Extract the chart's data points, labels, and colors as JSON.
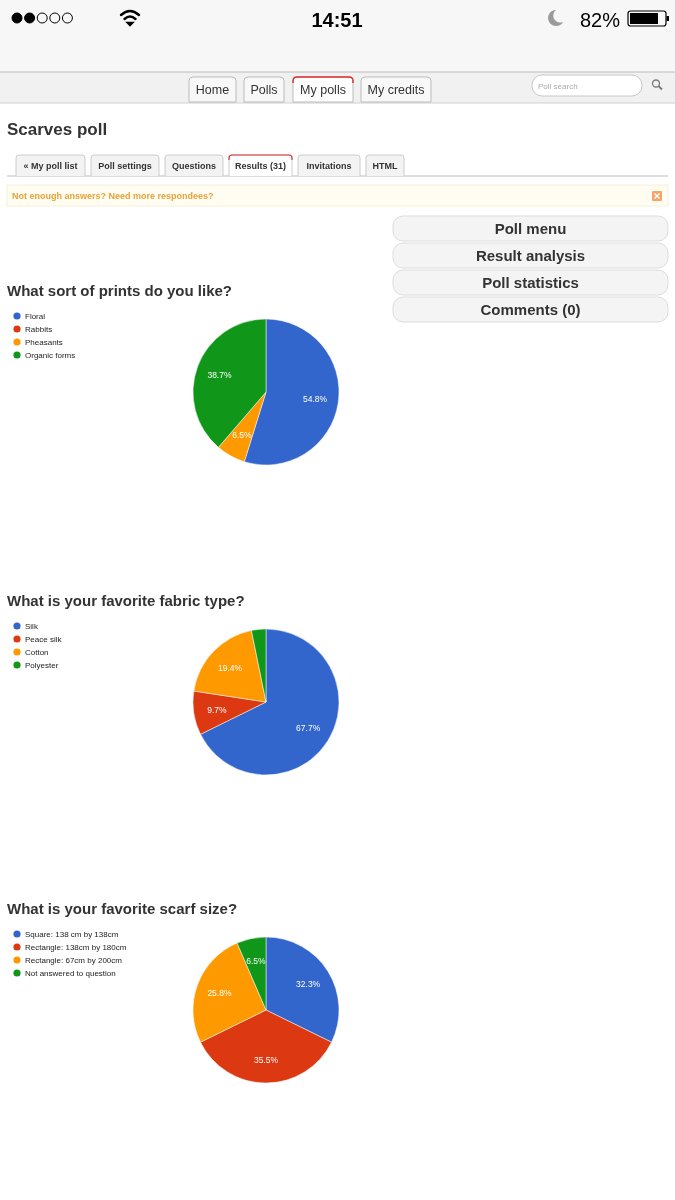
{
  "chart_data": [
    {
      "type": "other",
      "title": "Scarves poll",
      "annotations": [
        "14:51",
        "82%",
        "Home",
        "Polls",
        "My polls",
        "My credits",
        "Poll search",
        "« My poll list",
        "Poll settings",
        "Questions",
        "Results (31)",
        "Invitations",
        "HTML",
        "Not enough answers? Need more respondees?",
        "Poll menu",
        "Result analysis",
        "Poll statistics",
        "Comments (0)"
      ]
    },
    {
      "type": "pie",
      "title": "What sort of prints do you like?",
      "categories": [
        "Floral",
        "Rabbits",
        "Pheasants",
        "Organic forms"
      ],
      "values": [
        54.8,
        0,
        6.5,
        38.7
      ],
      "colors": [
        "#3366cc",
        "#dc3912",
        "#ff9900",
        "#109618"
      ],
      "value_labels": [
        "54.8%",
        null,
        "6.5%",
        "38.7%"
      ],
      "legend": "top left"
    },
    {
      "type": "pie",
      "title": "What is your favorite fabric type?",
      "categories": [
        "Silk",
        "Peace silk",
        "Cotton",
        "Polyester"
      ],
      "values": [
        67.7,
        9.7,
        19.4,
        3.2
      ],
      "colors": [
        "#3366cc",
        "#dc3912",
        "#ff9900",
        "#109618"
      ],
      "value_labels": [
        "67.7%",
        "9.7%",
        "19.4%",
        null
      ],
      "legend": "top left"
    },
    {
      "type": "pie",
      "title": "What is your favorite scarf size?",
      "categories": [
        "Square: 138 cm by 138cm",
        "Rectangle: 138cm by 180cm",
        "Rectangle: 67cm by 200cm",
        "Not answered to question"
      ],
      "values": [
        32.3,
        35.5,
        25.8,
        6.5
      ],
      "colors": [
        "#3366cc",
        "#dc3912",
        "#ff9900",
        "#109618"
      ],
      "value_labels": [
        "32.3%",
        "35.5%",
        "25.8%",
        "6.5%"
      ],
      "legend": "top left"
    }
  ]
}
